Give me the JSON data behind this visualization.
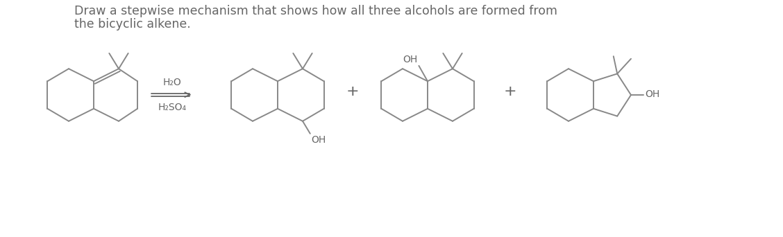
{
  "title_line1": "Draw a stepwise mechanism that shows how all three alcohols are formed from",
  "title_line2": "the bicyclic alkene.",
  "reagent_top": "H₂O",
  "reagent_bottom": "H₂SO₄",
  "plus_sign": "+",
  "text_color": "#666666",
  "bg_color": "#ffffff",
  "line_color": "#888888",
  "title_fontsize": 12.5,
  "reagent_fontsize": 10,
  "oh_fontsize": 10,
  "lw": 1.4
}
